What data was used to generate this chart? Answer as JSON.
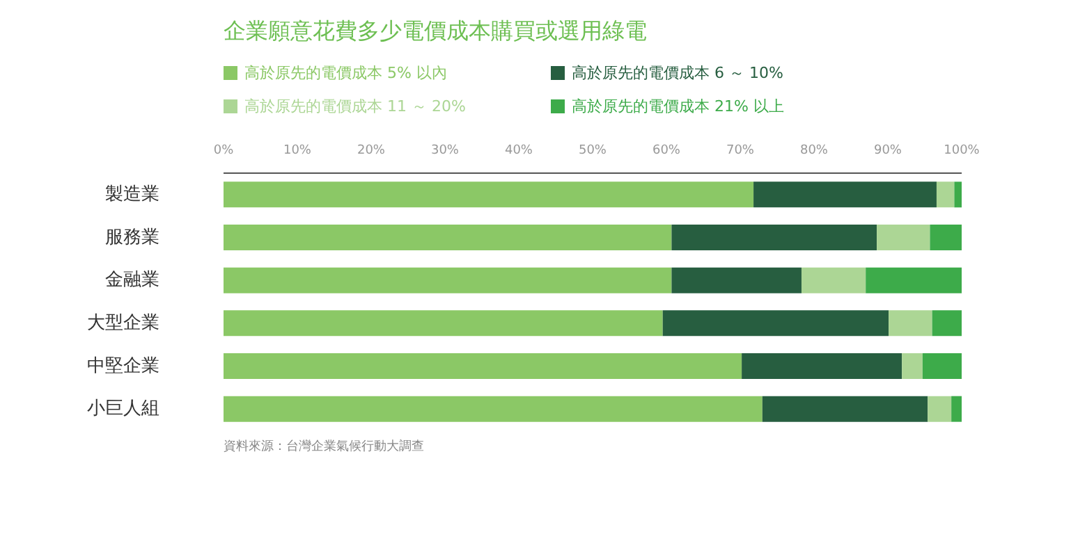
{
  "chart_data": {
    "type": "bar",
    "orientation": "horizontal",
    "stacked": true,
    "title": "企業願意花費多少電價成本購買或選用綠電",
    "categories": [
      "製造業",
      "服務業",
      "金融業",
      "大型企業",
      "中堅企業",
      "小巨人組"
    ],
    "series": [
      {
        "name": "高於原先的電價成本 5% 以內",
        "color": "#8bc866",
        "values": [
          71.8,
          60.7,
          60.7,
          59.5,
          70.2,
          73.0
        ]
      },
      {
        "name": "高於原先的電價成本 6 ～ 10%",
        "color": "#275e40",
        "values": [
          24.8,
          27.8,
          17.6,
          30.6,
          21.7,
          22.4
        ]
      },
      {
        "name": "高於原先的電價成本 11 ～ 20%",
        "color": "#acd695",
        "values": [
          2.4,
          7.2,
          8.7,
          5.9,
          2.8,
          3.2
        ]
      },
      {
        "name": "高於原先的電價成本 21% 以上",
        "color": "#3dab4a",
        "values": [
          1.0,
          4.3,
          13.0,
          4.0,
          5.3,
          1.4
        ]
      }
    ],
    "xlim": [
      0,
      100
    ],
    "xticks": [
      {
        "value": 0,
        "label": "0%"
      },
      {
        "value": 10,
        "label": "10%"
      },
      {
        "value": 20,
        "label": "20%"
      },
      {
        "value": 30,
        "label": "30%"
      },
      {
        "value": 40,
        "label": "40%"
      },
      {
        "value": 50,
        "label": "50%"
      },
      {
        "value": 60,
        "label": "60%"
      },
      {
        "value": 70,
        "label": "70%"
      },
      {
        "value": 80,
        "label": "80%"
      },
      {
        "value": 90,
        "label": "90%"
      },
      {
        "value": 100,
        "label": "100%"
      }
    ],
    "grid": false,
    "legend": "top left",
    "annotations": [
      "資料來源：台灣企業氣候行動大調查"
    ]
  }
}
